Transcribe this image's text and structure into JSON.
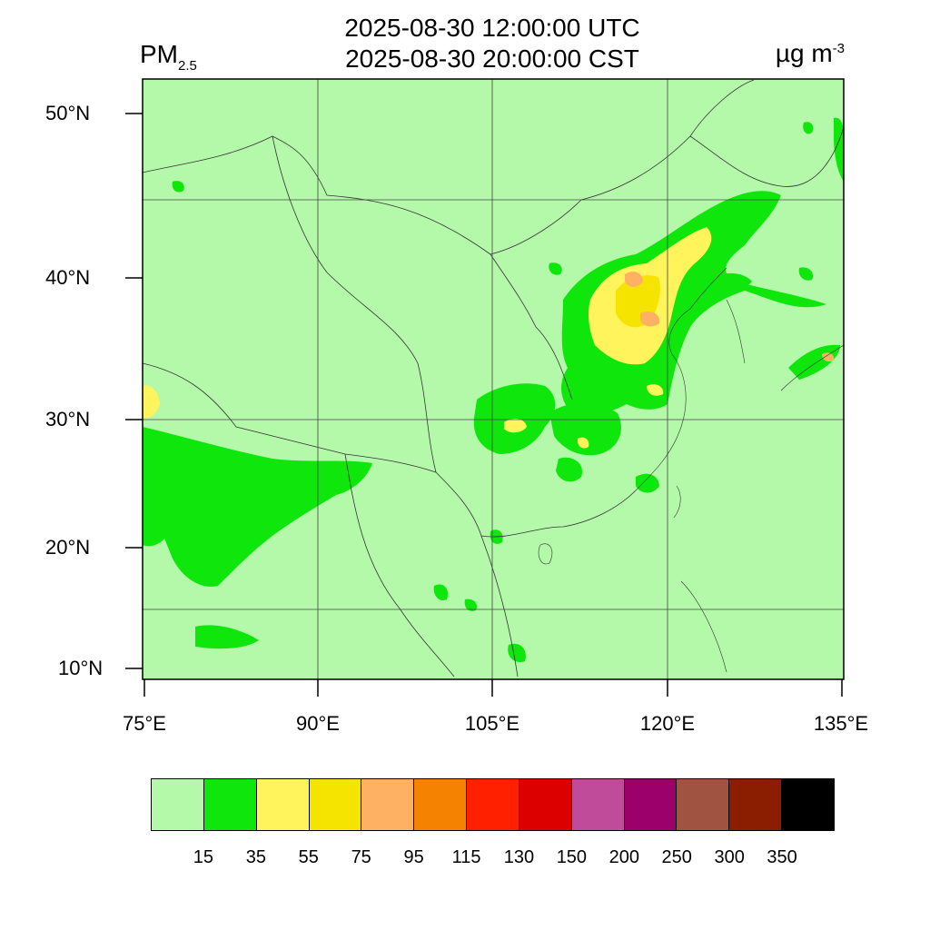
{
  "title": {
    "utc": "2025-08-30 12:00:00 UTC",
    "cst": "2025-08-30 20:00:00 CST"
  },
  "variable": {
    "main": "PM",
    "sub": "2.5"
  },
  "unit": {
    "main": "µg m",
    "exp": "-3"
  },
  "lat_ticks": [
    "50°N",
    "40°N",
    "30°N",
    "20°N",
    "10°N"
  ],
  "lon_ticks": [
    "75°E",
    "90°E",
    "105°E",
    "120°E",
    "135°E"
  ],
  "colorbar": {
    "colors": [
      "#b4f9a9",
      "#0ee60c",
      "#fff45c",
      "#f4e400",
      "#ffb163",
      "#f58200",
      "#ff2000",
      "#dc0000",
      "#bf4b9a",
      "#9b006b",
      "#9f5340",
      "#8b1e00",
      "#000000"
    ],
    "labels": [
      "15",
      "35",
      "55",
      "75",
      "95",
      "115",
      "130",
      "150",
      "200",
      "250",
      "300",
      "350"
    ]
  },
  "colors": {
    "background_level": "#b4f9a9",
    "level_35": "#0ee60c",
    "level_55": "#fff45c",
    "level_75": "#f4e400",
    "level_95": "#ffb163"
  }
}
